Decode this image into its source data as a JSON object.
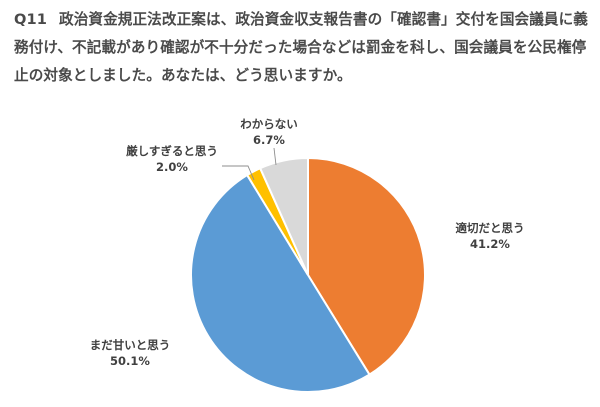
{
  "question": {
    "number": "Q11",
    "text": "政治資金規正法改正案は、政治資金収支報告書の「確認書」交付を国会議員に義務付け、不記載があり確認が不十分だった場合などは罰金を科し、国会議員を公民権停止の対象としました。あなたは、どう思いますか。"
  },
  "chart_data": {
    "type": "pie",
    "title": "",
    "slices": [
      {
        "label": "適切だと思う",
        "value": 41.2,
        "display": "41.2%",
        "color": "#ED7D31"
      },
      {
        "label": "まだ甘いと思う",
        "value": 50.1,
        "display": "50.1%",
        "color": "#5B9BD5"
      },
      {
        "label": "厳しすぎると思う",
        "value": 2.0,
        "display": "2.0%",
        "color": "#FFC000"
      },
      {
        "label": "わからない",
        "value": 6.7,
        "display": "6.7%",
        "color": "#D9D9D9"
      }
    ],
    "start": "top",
    "direction": "clockwise",
    "border_color": "#ffffff"
  }
}
